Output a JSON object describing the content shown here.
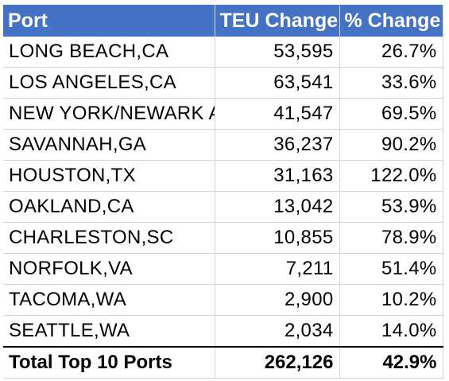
{
  "headers": {
    "port": "Port",
    "teu_change": "TEU Change",
    "pct_change": "% Change"
  },
  "rows": [
    {
      "port": "LONG BEACH,CA",
      "teu": "53,595",
      "pct": "26.7%"
    },
    {
      "port": "LOS ANGELES,CA",
      "teu": "63,541",
      "pct": "33.6%"
    },
    {
      "port": "NEW YORK/NEWARK A",
      "teu": "41,547",
      "pct": "69.5%"
    },
    {
      "port": "SAVANNAH,GA",
      "teu": "36,237",
      "pct": "90.2%"
    },
    {
      "port": "HOUSTON,TX",
      "teu": "31,163",
      "pct": "122.0%"
    },
    {
      "port": "OAKLAND,CA",
      "teu": "13,042",
      "pct": "53.9%"
    },
    {
      "port": "CHARLESTON,SC",
      "teu": "10,855",
      "pct": "78.9%"
    },
    {
      "port": "NORFOLK,VA",
      "teu": "7,211",
      "pct": "51.4%"
    },
    {
      "port": "TACOMA,WA",
      "teu": "2,900",
      "pct": "10.2%"
    },
    {
      "port": "SEATTLE,WA",
      "teu": "2,034",
      "pct": "14.0%"
    }
  ],
  "total": {
    "label": "Total Top 10 Ports",
    "teu": "262,126",
    "pct": "42.9%"
  },
  "colors": {
    "header_bg": "#4472c4",
    "header_text": "#ffffff"
  }
}
